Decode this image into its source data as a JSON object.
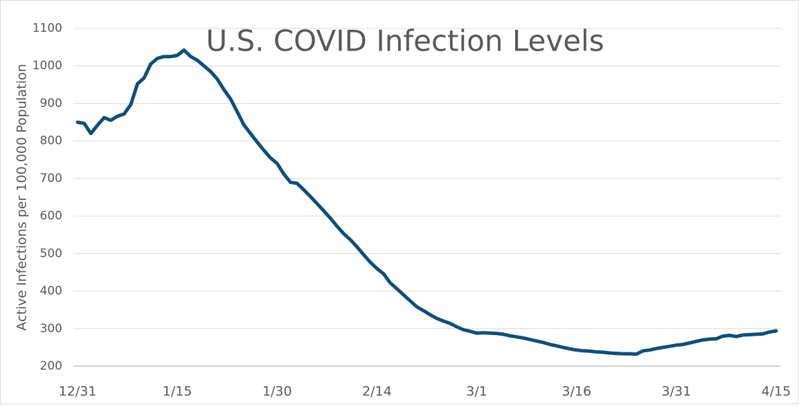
{
  "chart_data": {
    "type": "line",
    "title": "U.S. COVID Infection Levels",
    "y_label": "Active Infections per 100,000 Population",
    "categories": [
      "12/31",
      null,
      null,
      null,
      null,
      null,
      null,
      null,
      null,
      null,
      null,
      null,
      null,
      null,
      null,
      "1/15",
      null,
      null,
      null,
      null,
      null,
      null,
      null,
      null,
      null,
      null,
      null,
      null,
      null,
      null,
      "1/30",
      null,
      null,
      null,
      null,
      null,
      null,
      null,
      null,
      null,
      null,
      null,
      null,
      null,
      null,
      "2/14",
      null,
      null,
      null,
      null,
      null,
      null,
      null,
      null,
      null,
      null,
      null,
      null,
      null,
      null,
      "3/1",
      null,
      null,
      null,
      null,
      null,
      null,
      null,
      null,
      null,
      null,
      null,
      null,
      null,
      null,
      "3/16",
      null,
      null,
      null,
      null,
      null,
      null,
      null,
      null,
      null,
      null,
      null,
      null,
      null,
      null,
      "3/31",
      null,
      null,
      null,
      null,
      null,
      null,
      null,
      null,
      null,
      null,
      null,
      null,
      null,
      null,
      "4/15"
    ],
    "series": [
      {
        "name": "Active Infections",
        "color": "#0e4f7c",
        "values": [
          850,
          847,
          820,
          842,
          862,
          855,
          866,
          872,
          897,
          952,
          968,
          1005,
          1020,
          1025,
          1025,
          1028,
          1042,
          1025,
          1015,
          1000,
          985,
          965,
          937,
          912,
          878,
          843,
          820,
          797,
          775,
          755,
          740,
          712,
          690,
          687,
          670,
          652,
          633,
          614,
          594,
          573,
          553,
          537,
          518,
          497,
          477,
          460,
          446,
          422,
          406,
          390,
          374,
          358,
          348,
          337,
          327,
          320,
          314,
          305,
          297,
          293,
          288,
          289,
          288,
          287,
          285,
          281,
          278,
          275,
          271,
          267,
          263,
          258,
          254,
          250,
          246,
          243,
          241,
          240,
          238,
          237,
          235,
          234,
          233,
          233,
          232,
          241,
          243,
          247,
          250,
          253,
          256,
          258,
          262,
          266,
          270,
          272,
          273,
          280,
          282,
          279,
          283,
          284,
          285,
          286,
          291,
          294
        ]
      }
    ],
    "ylim": [
      200,
      1100
    ],
    "yticks": [
      200,
      300,
      400,
      500,
      600,
      700,
      800,
      900,
      1000,
      1100
    ],
    "grid": true
  }
}
